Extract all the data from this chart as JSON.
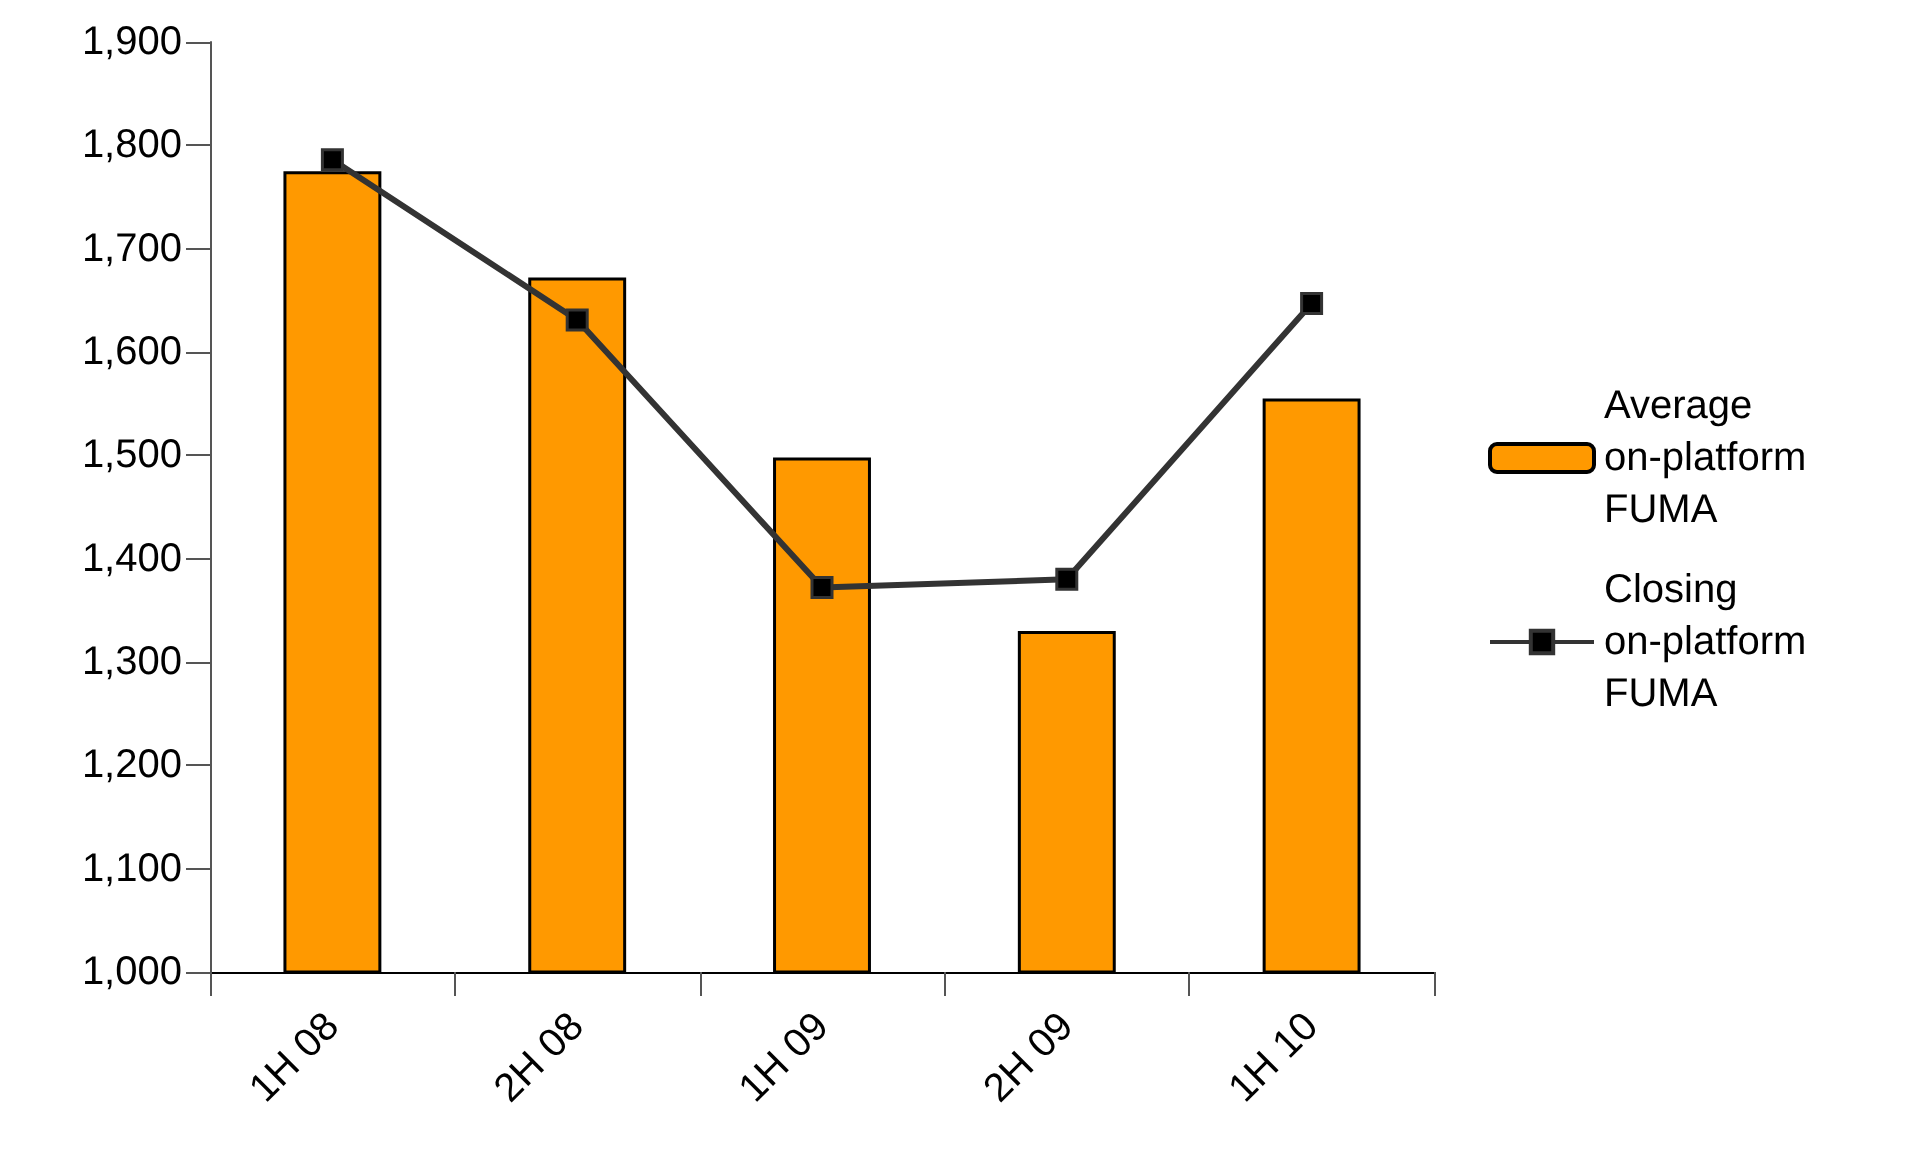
{
  "chart_data": {
    "type": "bar",
    "categories": [
      "1H 08",
      "2H 08",
      "1H 09",
      "2H 09",
      "1H 10"
    ],
    "series": [
      {
        "name": "Average on-platform FUMA",
        "color": "#ff9900",
        "values": [
          1775,
          1672,
          1498,
          1330,
          1555
        ]
      },
      {
        "name": "Closing on-platform FUMA",
        "type": "line",
        "color": "#333333",
        "values": [
          1786,
          1631,
          1372,
          1380,
          1647
        ]
      }
    ],
    "ylim": [
      1000,
      1900
    ],
    "yticks": [
      {
        "value": 1000,
        "label": "1,000"
      },
      {
        "value": 1100,
        "label": "1,100"
      },
      {
        "value": 1200,
        "label": "1,200"
      },
      {
        "value": 1300,
        "label": "1,300"
      },
      {
        "value": 1400,
        "label": "1,400"
      },
      {
        "value": 1500,
        "label": "1,500"
      },
      {
        "value": 1600,
        "label": "1,600"
      },
      {
        "value": 1700,
        "label": "1,700"
      },
      {
        "value": 1800,
        "label": "1,800"
      },
      {
        "value": 1900,
        "label": "1,900"
      }
    ],
    "grid": false,
    "legend": "right",
    "marker": "square",
    "line_style": "solid"
  }
}
